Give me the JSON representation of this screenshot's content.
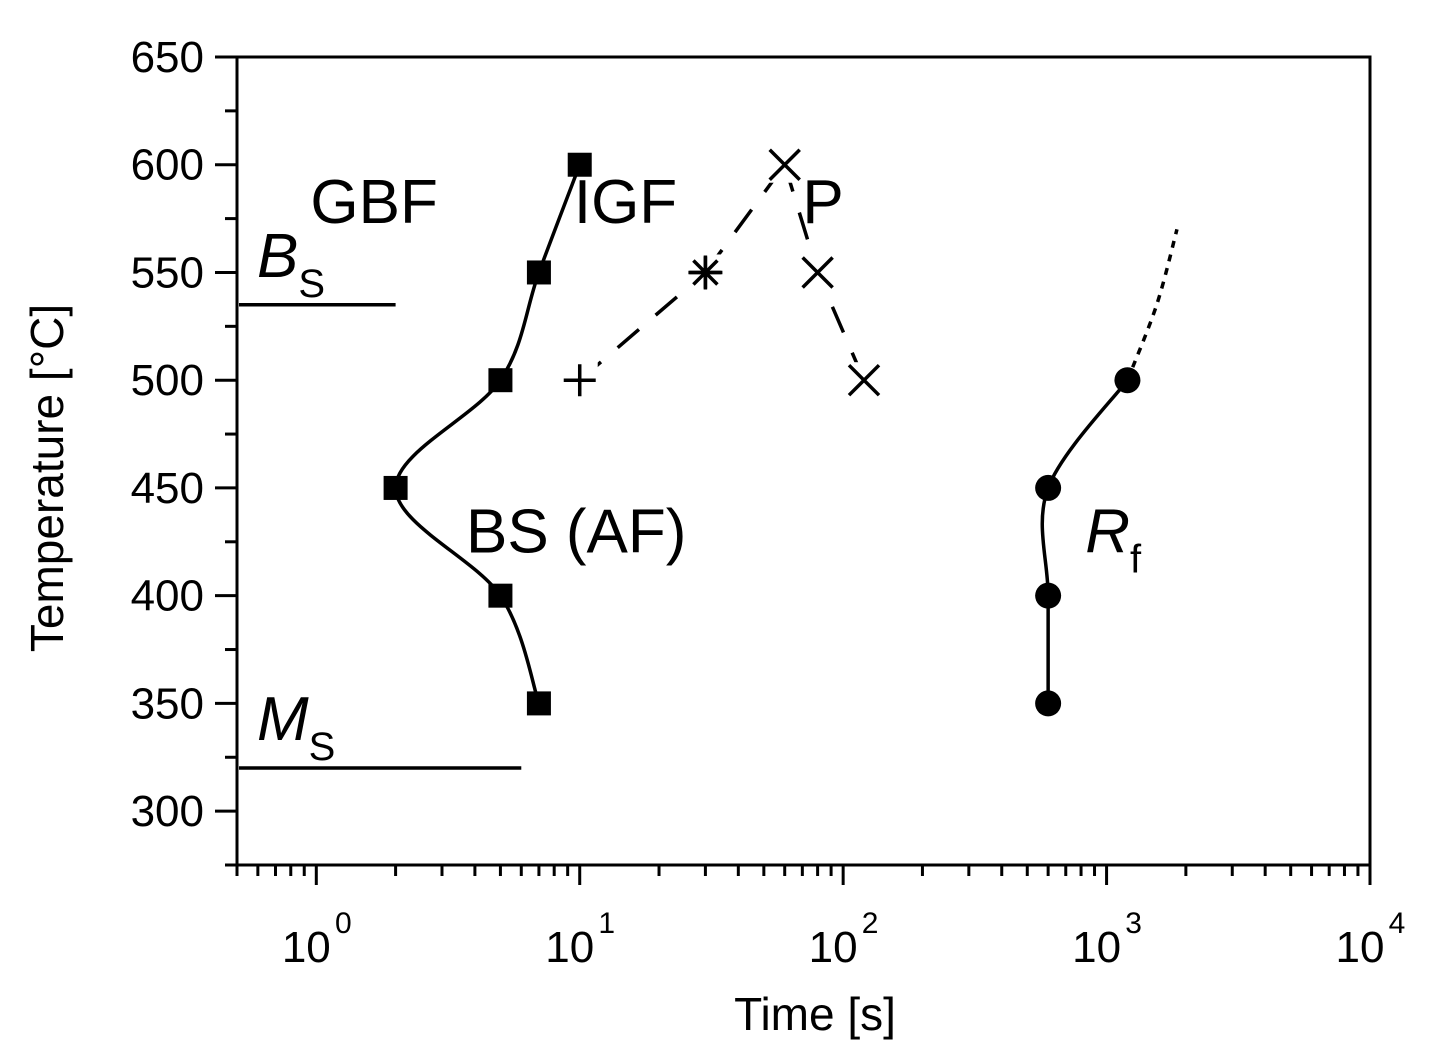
{
  "chart_data": {
    "type": "scatter",
    "xlabel": "Time [s]",
    "ylabel": "Temperature [°C]",
    "x_scale": "log",
    "xlim": [
      0.5,
      10000
    ],
    "ylim": [
      275,
      650
    ],
    "x_ticks": [
      {
        "value": 1,
        "base": "10",
        "exp": "0"
      },
      {
        "value": 10,
        "base": "10",
        "exp": "1"
      },
      {
        "value": 100,
        "base": "10",
        "exp": "2"
      },
      {
        "value": 1000,
        "base": "10",
        "exp": "3"
      },
      {
        "value": 10000,
        "base": "10",
        "exp": "4"
      }
    ],
    "y_ticks": [
      300,
      350,
      400,
      450,
      500,
      550,
      600,
      650
    ],
    "series": [
      {
        "marker": "square",
        "line": "solid-smooth",
        "x": [
          10,
          7,
          5,
          2,
          5,
          7
        ],
        "y": [
          600,
          550,
          500,
          450,
          400,
          350
        ]
      },
      {
        "marker": "plus",
        "line": "dashed",
        "x": [
          10,
          30
        ],
        "y": [
          500,
          550
        ]
      },
      {
        "marker": "asterisk",
        "line": "dashed",
        "x": [
          30,
          60
        ],
        "y": [
          550,
          600
        ]
      },
      {
        "marker": "x",
        "line": "dashed",
        "x": [
          60,
          80,
          120
        ],
        "y": [
          600,
          550,
          500
        ]
      },
      {
        "marker": "circle",
        "line": "solid-smooth",
        "x": [
          600,
          600,
          600,
          1200
        ],
        "y": [
          350,
          400,
          450,
          500
        ]
      },
      {
        "marker": "none",
        "line": "dotted",
        "x": [
          1200,
          1550,
          1850
        ],
        "y": [
          500,
          535,
          570
        ]
      }
    ],
    "reference_lines": [
      {
        "label": "B",
        "sub": "S",
        "y": 535,
        "x_from": 0.5,
        "x_to": 2
      },
      {
        "label": "M",
        "sub": "S",
        "y": 320,
        "x_from": 0.5,
        "x_to": 6
      }
    ],
    "annotations": [
      {
        "text": "GBF",
        "x": 0.95,
        "y": 573
      },
      {
        "text": "IGF",
        "x": 9.5,
        "y": 573
      },
      {
        "text": "P",
        "x": 70,
        "y": 573
      },
      {
        "text": "BS (AF)",
        "x": 3.7,
        "y": 420
      },
      {
        "text": "R",
        "sub": "f",
        "x": 830,
        "y": 420
      }
    ],
    "colors": {
      "ink": "#000000",
      "background": "#ffffff"
    },
    "grid": false,
    "legend": "none"
  }
}
